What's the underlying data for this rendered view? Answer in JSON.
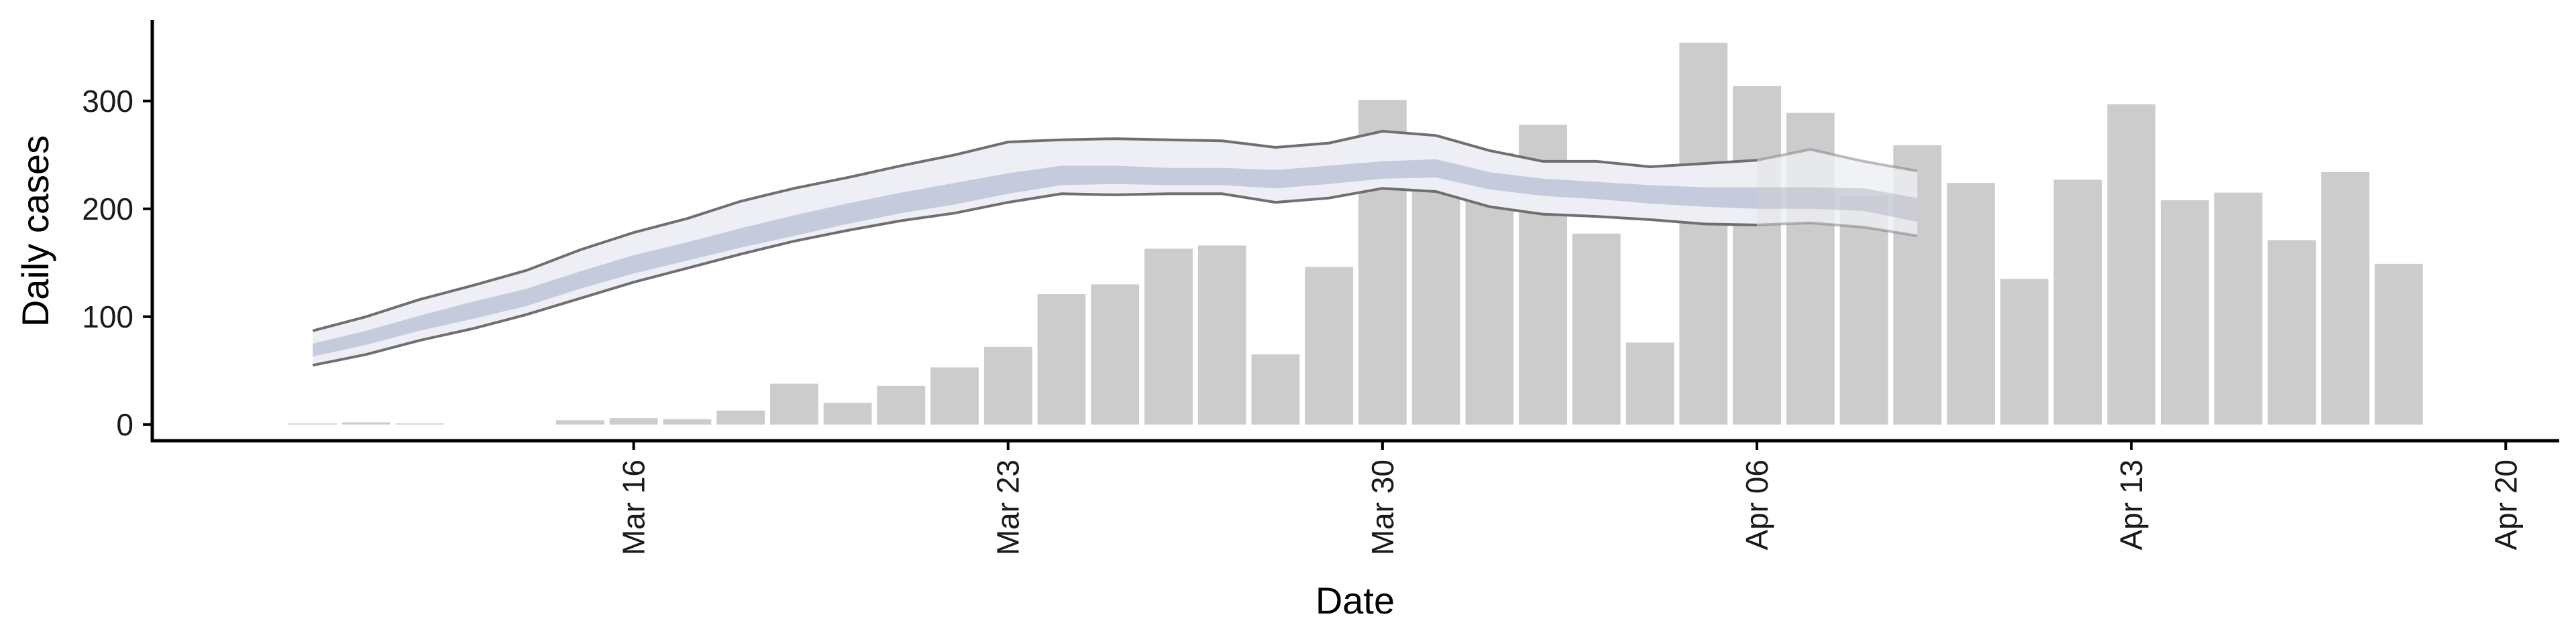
{
  "chart_data": {
    "type": "bar",
    "xlabel": "Date",
    "ylabel": "Daily cases",
    "xlim": [
      "2020-03-07",
      "2020-04-21"
    ],
    "ylim": [
      -15,
      375
    ],
    "y_ticks": [
      0,
      100,
      200,
      300
    ],
    "x_ticks": [
      {
        "date": "2020-03-16",
        "label": "Mar 16"
      },
      {
        "date": "2020-03-23",
        "label": "Mar 23"
      },
      {
        "date": "2020-03-30",
        "label": "Mar 30"
      },
      {
        "date": "2020-04-06",
        "label": "Apr 06"
      },
      {
        "date": "2020-04-13",
        "label": "Apr 13"
      },
      {
        "date": "2020-04-20",
        "label": "Apr 20"
      }
    ],
    "grid": false,
    "bars": {
      "color": "#cccccc",
      "dates": [
        "2020-03-10",
        "2020-03-11",
        "2020-03-12",
        "2020-03-13",
        "2020-03-14",
        "2020-03-15",
        "2020-03-16",
        "2020-03-17",
        "2020-03-18",
        "2020-03-19",
        "2020-03-20",
        "2020-03-21",
        "2020-03-22",
        "2020-03-23",
        "2020-03-24",
        "2020-03-25",
        "2020-03-26",
        "2020-03-27",
        "2020-03-28",
        "2020-03-29",
        "2020-03-30",
        "2020-03-31",
        "2020-04-01",
        "2020-04-02",
        "2020-04-03",
        "2020-04-04",
        "2020-04-05",
        "2020-04-06",
        "2020-04-07",
        "2020-04-08",
        "2020-04-09",
        "2020-04-10",
        "2020-04-11",
        "2020-04-12",
        "2020-04-13",
        "2020-04-14",
        "2020-04-15",
        "2020-04-16",
        "2020-04-17",
        "2020-04-18",
        "2020-04-19"
      ],
      "values": [
        1,
        2,
        1,
        0,
        0,
        4,
        6,
        5,
        13,
        38,
        20,
        36,
        53,
        72,
        121,
        130,
        163,
        166,
        65,
        146,
        301,
        230,
        252,
        278,
        177,
        76,
        354,
        314,
        289,
        212,
        259,
        224,
        135,
        227,
        297,
        208,
        215,
        171,
        234,
        149,
        0
      ]
    },
    "estimate": {
      "dates": [
        "2020-03-10",
        "2020-03-11",
        "2020-03-12",
        "2020-03-13",
        "2020-03-14",
        "2020-03-15",
        "2020-03-16",
        "2020-03-17",
        "2020-03-18",
        "2020-03-19",
        "2020-03-20",
        "2020-03-21",
        "2020-03-22",
        "2020-03-23",
        "2020-03-24",
        "2020-03-25",
        "2020-03-26",
        "2020-03-27",
        "2020-03-28",
        "2020-03-29",
        "2020-03-30",
        "2020-03-31",
        "2020-04-01",
        "2020-04-02",
        "2020-04-03",
        "2020-04-04",
        "2020-04-05",
        "2020-04-06",
        "2020-04-07",
        "2020-04-08",
        "2020-04-09",
        "2020-04-10"
      ],
      "outer_upper": [
        87,
        100,
        116,
        129,
        143,
        162,
        178,
        191,
        207,
        219,
        229,
        240,
        250,
        262,
        264,
        265,
        264,
        263,
        257,
        261,
        272,
        268,
        254,
        244,
        244,
        239,
        242,
        245,
        255,
        244,
        235,
        0
      ],
      "outer_lower": [
        55,
        65,
        78,
        89,
        102,
        117,
        132,
        145,
        158,
        170,
        180,
        189,
        196,
        206,
        214,
        213,
        214,
        214,
        206,
        210,
        219,
        216,
        202,
        195,
        193,
        190,
        186,
        185,
        187,
        183,
        175,
        0
      ],
      "inner_upper": [
        75,
        87,
        101,
        114,
        126,
        142,
        157,
        169,
        182,
        194,
        205,
        215,
        224,
        233,
        240,
        240,
        238,
        238,
        236,
        240,
        244,
        246,
        234,
        228,
        225,
        222,
        220,
        220,
        220,
        219,
        210,
        0
      ],
      "inner_lower": [
        63,
        74,
        87,
        98,
        110,
        126,
        140,
        152,
        164,
        175,
        186,
        196,
        204,
        214,
        222,
        223,
        222,
        222,
        219,
        223,
        228,
        229,
        218,
        212,
        209,
        205,
        202,
        200,
        200,
        198,
        188,
        0
      ],
      "series_colors": {
        "outer_band": "#eeeff4",
        "inner_band": "#b7bdd6",
        "bound_line": "#6f6f6f",
        "projection_band": "#a9abbd"
      }
    }
  }
}
